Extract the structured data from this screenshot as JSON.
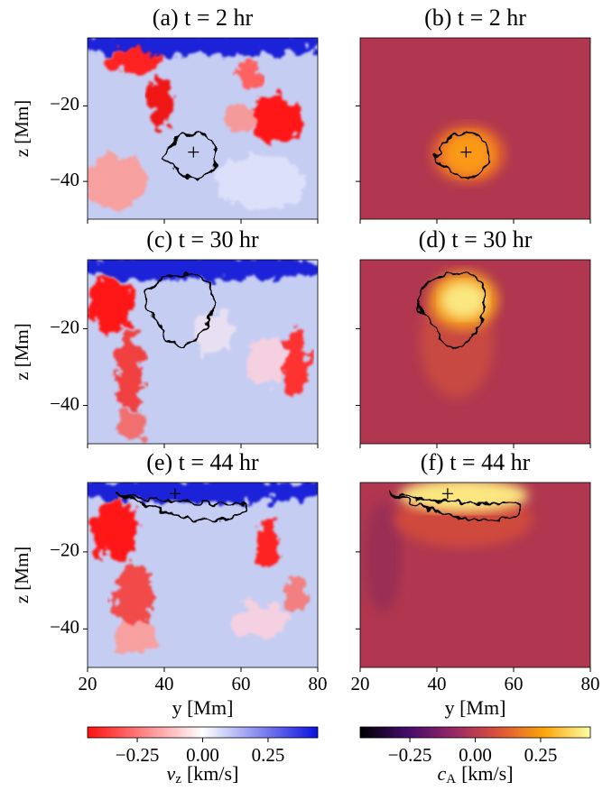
{
  "chart_data": [
    {
      "type": "heatmap",
      "title": "(a) t = 2 hr",
      "colormap": "bwr",
      "xlim": [
        20,
        80
      ],
      "ylim": [
        -50,
        -2
      ],
      "xticks": [
        20,
        40,
        60,
        80
      ],
      "yticks": [
        {
          "value": -20,
          "label": "−20"
        },
        {
          "value": -40,
          "label": "−40"
        }
      ],
      "ylabel": "z [Mm]"
    },
    {
      "type": "heatmap",
      "title": "(b) t = 2 hr",
      "colormap": "inferno",
      "xlim": [
        20,
        80
      ],
      "ylim": [
        -50,
        -2
      ],
      "xticks": [
        20,
        40,
        60,
        80
      ],
      "yticks": [
        {
          "value": -20,
          "label": "−20"
        },
        {
          "value": -40,
          "label": "−40"
        }
      ]
    },
    {
      "type": "heatmap",
      "title": "(c) t = 30 hr",
      "colormap": "bwr",
      "xlim": [
        20,
        80
      ],
      "ylim": [
        -50,
        -2
      ],
      "xticks": [
        20,
        40,
        60,
        80
      ],
      "yticks": [
        {
          "value": -20,
          "label": "−20"
        },
        {
          "value": -40,
          "label": "−40"
        }
      ],
      "ylabel": "z [Mm]"
    },
    {
      "type": "heatmap",
      "title": "(d) t = 30 hr",
      "colormap": "inferno",
      "xlim": [
        20,
        80
      ],
      "ylim": [
        -50,
        -2
      ],
      "xticks": [
        20,
        40,
        60,
        80
      ],
      "yticks": [
        {
          "value": -20,
          "label": "−20"
        },
        {
          "value": -40,
          "label": "−40"
        }
      ]
    },
    {
      "type": "heatmap",
      "title": "(e) t = 44 hr",
      "colormap": "bwr",
      "xlim": [
        20,
        80
      ],
      "ylim": [
        -50,
        -2
      ],
      "xticks": [
        20,
        40,
        60,
        80
      ],
      "yticks": [
        {
          "value": -20,
          "label": "−20"
        },
        {
          "value": -40,
          "label": "−40"
        }
      ],
      "ylabel": "z [Mm]",
      "xlabel": "y [Mm]"
    },
    {
      "type": "heatmap",
      "title": "(f) t = 44 hr",
      "colormap": "inferno",
      "xlim": [
        20,
        80
      ],
      "ylim": [
        -50,
        -2
      ],
      "xticks": [
        20,
        40,
        60,
        80
      ],
      "yticks": [
        {
          "value": -20,
          "label": "−20"
        },
        {
          "value": -40,
          "label": "−40"
        }
      ],
      "xlabel": "y [Mm]"
    }
  ],
  "colorbars": [
    {
      "colormap": "bwr",
      "clim": [
        -0.44,
        0.44
      ],
      "ticks": [
        {
          "value": -0.25,
          "label": "−0.25"
        },
        {
          "value": 0,
          "label": "0.00"
        },
        {
          "value": 0.25,
          "label": "0.25"
        }
      ],
      "label": {
        "symbol": "v",
        "subscript": "z",
        "unit": "[km/s]"
      }
    },
    {
      "colormap": "inferno",
      "clim": [
        -0.44,
        0.44
      ],
      "ticks": [
        {
          "value": -0.25,
          "label": "−0.25"
        },
        {
          "value": 0,
          "label": "0.00"
        },
        {
          "value": 0.25,
          "label": "0.25"
        }
      ],
      "label": {
        "symbol": "c",
        "subscript": "A",
        "unit": "[km/s]"
      }
    }
  ]
}
